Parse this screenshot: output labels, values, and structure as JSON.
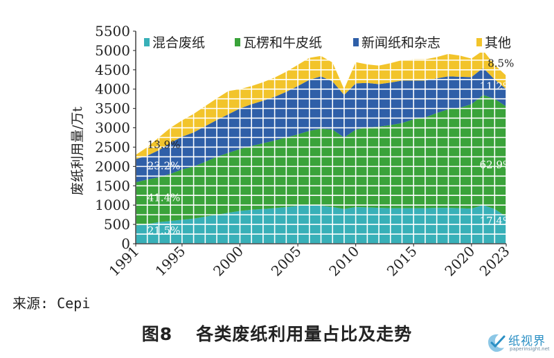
{
  "chart_data": {
    "type": "area",
    "stacked": true,
    "ylabel": "废纸利用量/万t",
    "ylim": [
      0,
      5500
    ],
    "yticks": [
      0,
      500,
      1000,
      1500,
      2000,
      2500,
      3000,
      3500,
      4000,
      4500,
      5000,
      5500
    ],
    "x": [
      1991,
      1992,
      1993,
      1994,
      1995,
      1996,
      1997,
      1998,
      1999,
      2000,
      2001,
      2002,
      2003,
      2004,
      2005,
      2006,
      2007,
      2008,
      2009,
      2010,
      2011,
      2012,
      2013,
      2014,
      2015,
      2016,
      2017,
      2018,
      2019,
      2020,
      2021,
      2022,
      2023
    ],
    "xticks": [
      1991,
      1995,
      2000,
      2005,
      2010,
      2015,
      2020,
      2023
    ],
    "grid": true,
    "legend_position": "top",
    "series": [
      {
        "name": "混合废纸",
        "color": "#38b0b8",
        "values": [
          470,
          510,
          560,
          590,
          620,
          650,
          700,
          750,
          800,
          850,
          880,
          900,
          920,
          950,
          980,
          1000,
          980,
          950,
          900,
          950,
          940,
          930,
          920,
          920,
          920,
          920,
          930,
          930,
          920,
          910,
          1000,
          900,
          700
        ]
      },
      {
        "name": "瓦楞和牛皮纸",
        "color": "#3aa33a",
        "values": [
          1120,
          1150,
          1160,
          1220,
          1300,
          1350,
          1420,
          1500,
          1550,
          1600,
          1650,
          1700,
          1750,
          1800,
          1850,
          1920,
          2000,
          2000,
          1850,
          2000,
          2070,
          2100,
          2150,
          2200,
          2300,
          2350,
          2450,
          2550,
          2600,
          2700,
          2850,
          2850,
          2850
        ]
      },
      {
        "name": "新闻纸和杂志",
        "color": "#2f5fa8",
        "values": [
          600,
          620,
          700,
          800,
          850,
          880,
          920,
          950,
          1000,
          1050,
          1080,
          1100,
          1130,
          1180,
          1250,
          1320,
          1350,
          1250,
          1100,
          1200,
          1150,
          1100,
          1100,
          1100,
          1000,
          950,
          900,
          850,
          800,
          700,
          700,
          500,
          450
        ]
      },
      {
        "name": "其他",
        "color": "#f2c42b",
        "values": [
          110,
          220,
          330,
          390,
          420,
          480,
          520,
          560,
          600,
          500,
          470,
          480,
          500,
          520,
          550,
          570,
          530,
          490,
          150,
          550,
          480,
          480,
          500,
          530,
          550,
          550,
          550,
          580,
          550,
          480,
          450,
          380,
          350
        ]
      }
    ],
    "annotations": [
      {
        "text": "13.9%",
        "x": 1992,
        "y": 2470,
        "color": "#222222"
      },
      {
        "text": "23.2%",
        "x": 1992,
        "y": 1930,
        "color": "#ffffff"
      },
      {
        "text": "41.4%",
        "x": 1992,
        "y": 1100,
        "color": "#ffffff"
      },
      {
        "text": "21.5%",
        "x": 1992,
        "y": 250,
        "color": "#ffffff"
      },
      {
        "text": "8.5%",
        "x": 2021.4,
        "y": 4580,
        "color": "#222222"
      },
      {
        "text": "11.2%",
        "x": 2020.7,
        "y": 3990,
        "color": "#ffffff"
      },
      {
        "text": "62.9%",
        "x": 2020.7,
        "y": 1950,
        "color": "#ffffff"
      },
      {
        "text": "17.4%",
        "x": 2020.7,
        "y": 500,
        "color": "#ffffff"
      }
    ]
  },
  "source": "来源: Cepi",
  "caption": {
    "figure": "图8",
    "title": "各类废纸利用量占比及走势"
  },
  "logo": {
    "name": "纸视界",
    "url": "paperinsight.net"
  }
}
